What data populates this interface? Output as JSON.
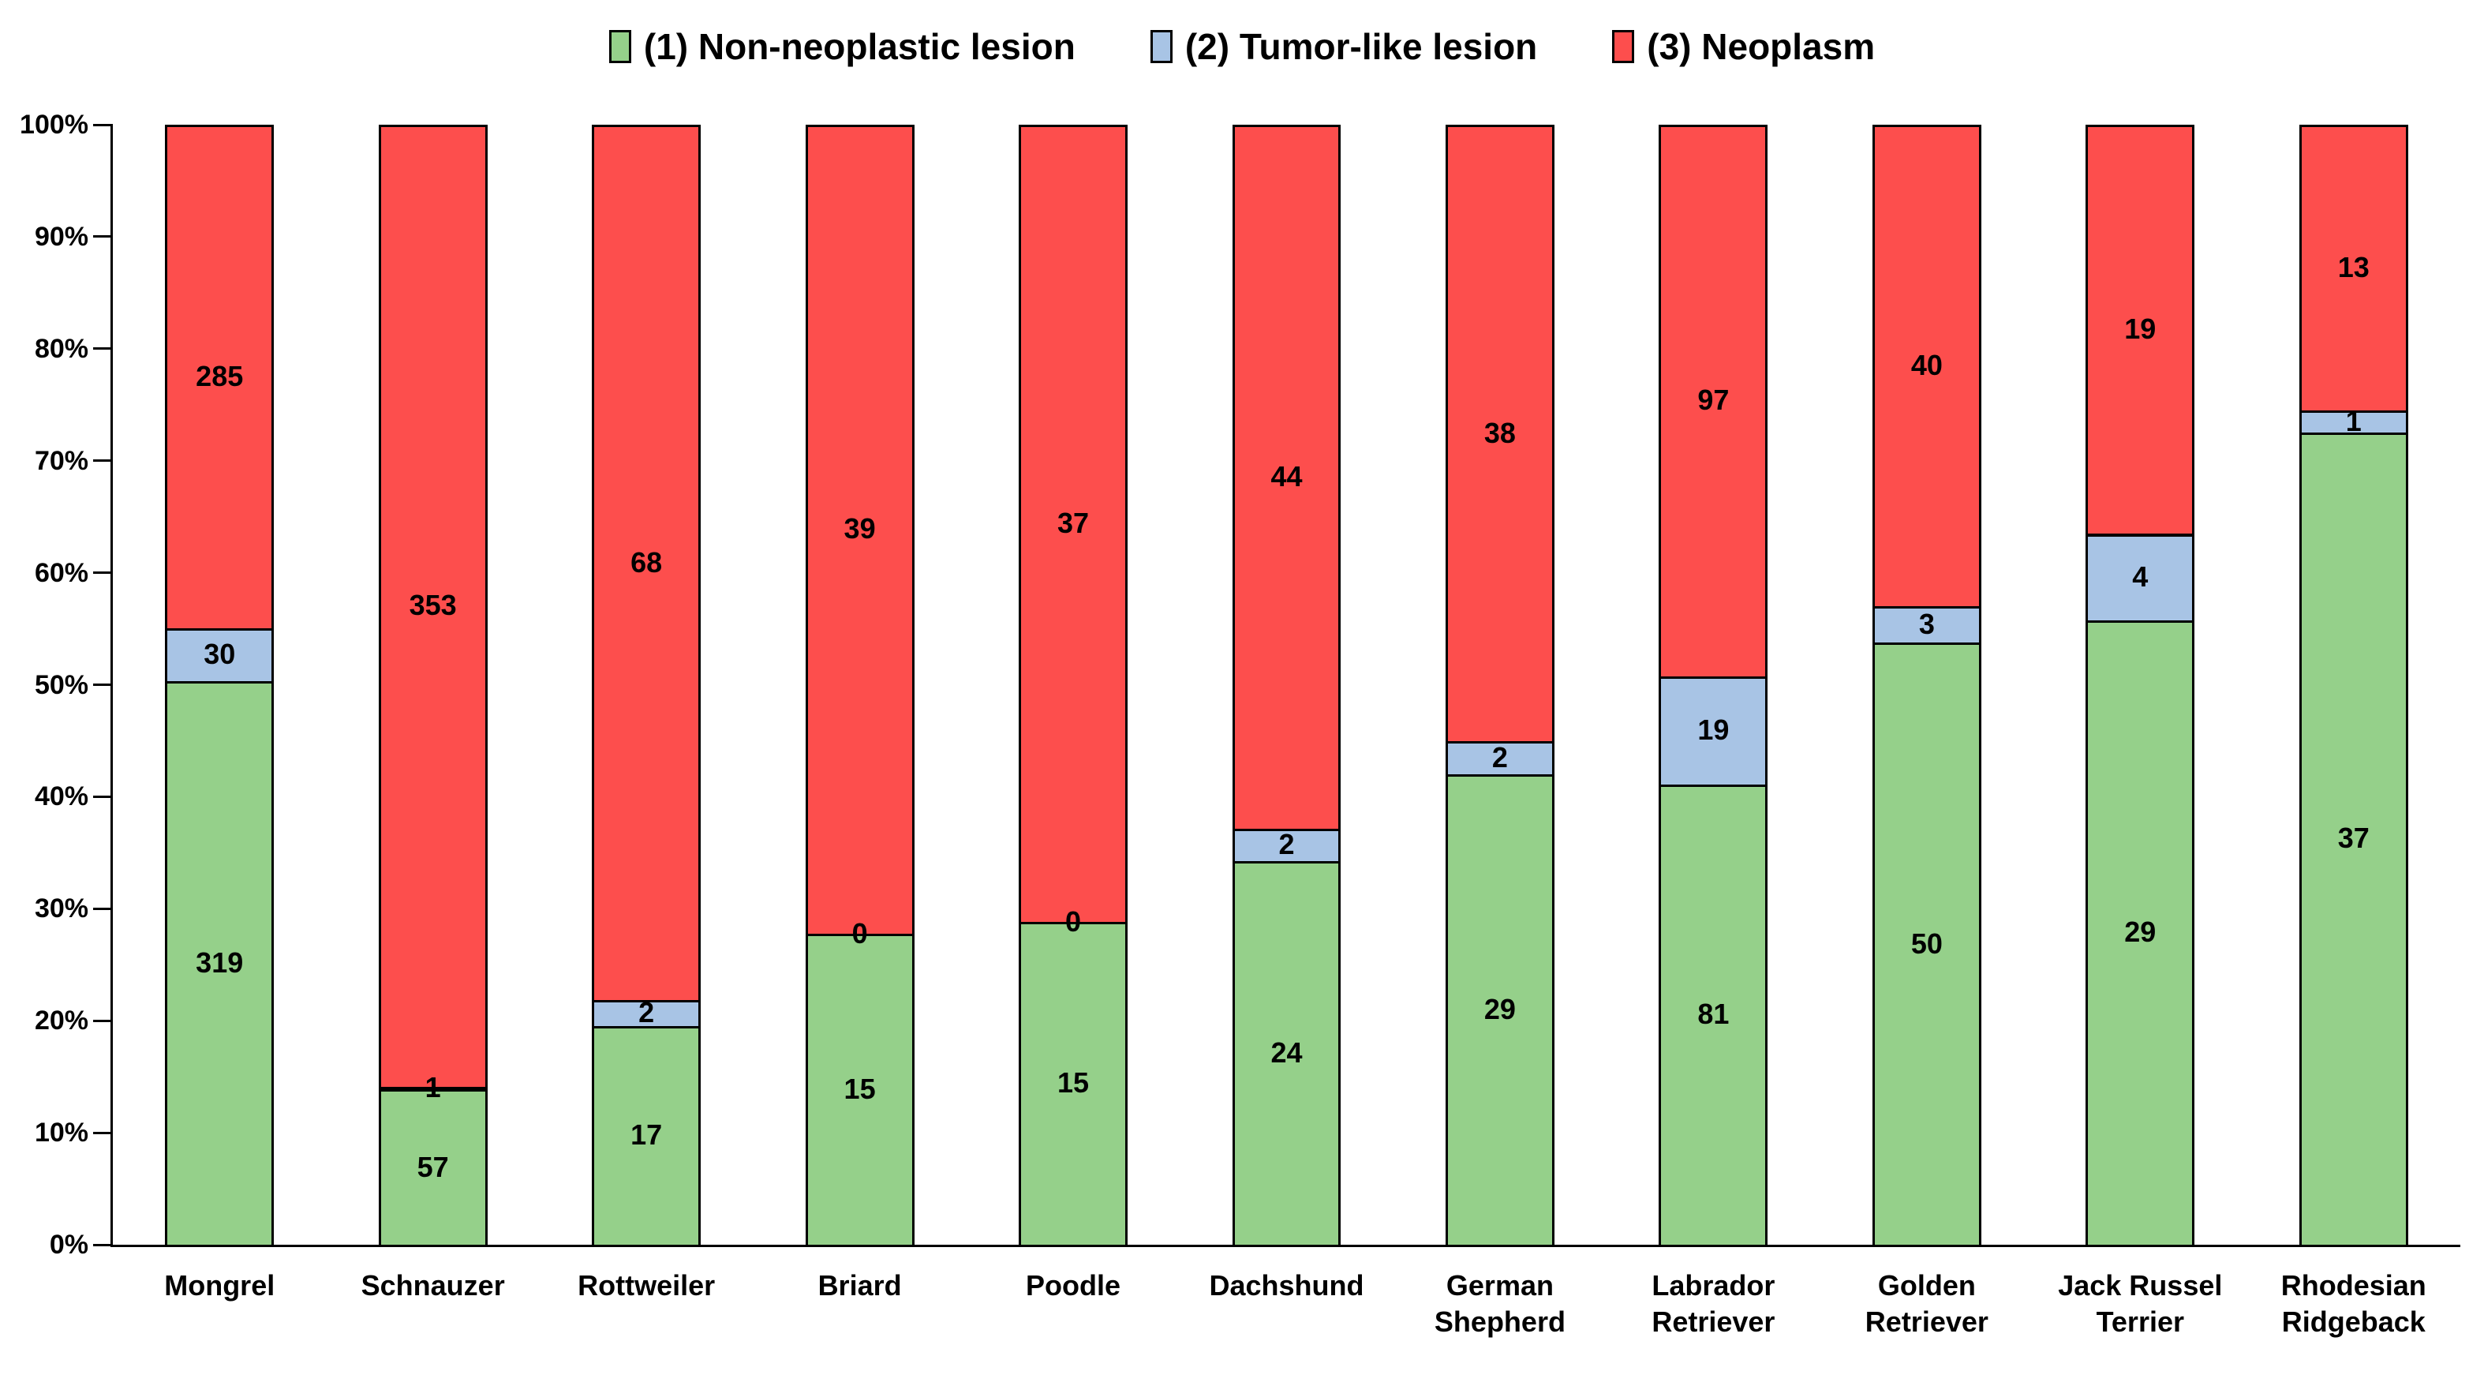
{
  "chart_data": {
    "type": "bar",
    "subtype": "stacked-100-percent",
    "stacked": true,
    "grid": false,
    "legend_position": "top",
    "ylim": [
      0,
      100
    ],
    "y_unit": "percent",
    "y_ticks": [
      "0%",
      "10%",
      "20%",
      "30%",
      "40%",
      "50%",
      "60%",
      "70%",
      "80%",
      "90%",
      "100%"
    ],
    "categories": [
      "Mongrel",
      "Schnauzer",
      "Rottweiler",
      "Briard",
      "Poodle",
      "Dachshund",
      "German Shepherd",
      "Labrador Retriever",
      "Golden Retriever",
      "Jack Russel Terrier",
      "Rhodesian Ridgeback"
    ],
    "series": [
      {
        "name": "(1) Non-neoplastic lesion",
        "color": "#95D08A",
        "values": [
          319,
          57,
          17,
          15,
          15,
          24,
          29,
          81,
          50,
          29,
          37
        ]
      },
      {
        "name": "(2) Tumor-like lesion",
        "color": "#A8C4E5",
        "values": [
          30,
          1,
          2,
          0,
          0,
          2,
          2,
          19,
          3,
          4,
          1
        ]
      },
      {
        "name": "(3) Neoplasm",
        "color": "#FD4E4D",
        "values": [
          285,
          353,
          68,
          39,
          37,
          44,
          38,
          97,
          40,
          19,
          13
        ]
      }
    ],
    "bar_border_color": "#000000",
    "label_color": "#000000"
  }
}
